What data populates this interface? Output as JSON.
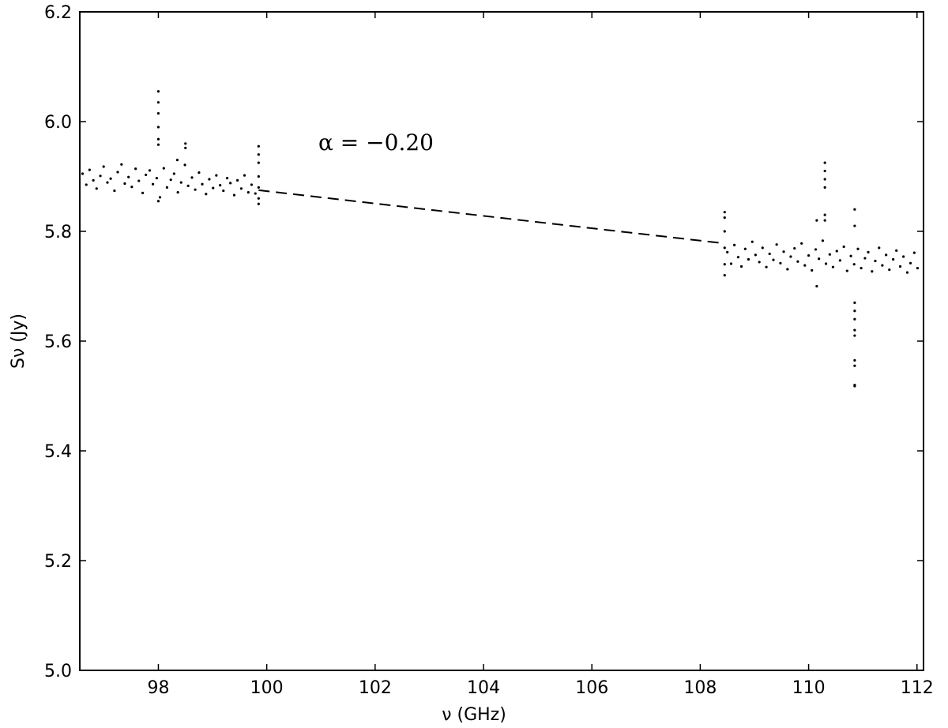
{
  "chart_data": {
    "type": "scatter",
    "xlabel": "ν (GHz)",
    "ylabel": "Sν (Jy)",
    "annotation": "α = −0.20",
    "xlim": [
      96.55,
      112.12
    ],
    "ylim": [
      5.0,
      6.2
    ],
    "xticks": [
      98,
      100,
      102,
      104,
      106,
      108,
      110,
      112
    ],
    "yticks": [
      {
        "value": 5.0,
        "label": "5.0"
      },
      {
        "value": 5.2,
        "label": "5.2"
      },
      {
        "value": 5.4,
        "label": "5.4"
      },
      {
        "value": 5.6,
        "label": "5.6"
      },
      {
        "value": 5.8,
        "label": "5.8"
      },
      {
        "value": 6.0,
        "label": "6.0"
      },
      {
        "value": 6.2,
        "label": "6.2"
      }
    ],
    "series": [
      {
        "color": "#000000",
        "style": "points",
        "x": [
          96.6,
          96.67,
          96.73,
          96.8,
          96.86,
          96.93,
          96.99,
          97.06,
          97.12,
          97.19,
          97.25,
          97.32,
          97.38,
          97.45,
          97.51,
          97.58,
          97.64,
          97.71,
          97.77,
          97.84,
          97.9,
          97.97,
          98.03,
          98.1,
          98.16,
          98.23,
          98.29,
          98.36,
          98.42,
          98.49,
          98.55,
          98.62,
          98.68,
          98.75,
          98.81,
          98.88,
          98.94,
          99.01,
          99.07,
          99.14,
          99.2,
          99.27,
          99.33,
          99.4,
          99.46,
          99.53,
          99.59,
          99.66,
          99.72,
          99.79,
          98.0,
          98.0,
          98.0,
          98.0,
          98.0,
          98.0,
          98.0,
          98.5,
          98.5,
          98.35,
          99.85,
          99.85,
          99.85,
          99.85,
          99.85,
          99.85,
          99.85,
          108.5,
          108.57,
          108.63,
          108.7,
          108.76,
          108.83,
          108.89,
          108.96,
          109.02,
          109.09,
          109.15,
          109.22,
          109.28,
          109.35,
          109.41,
          109.48,
          109.54,
          109.61,
          109.67,
          109.74,
          109.8,
          109.87,
          109.93,
          110.0,
          110.06,
          110.13,
          110.19,
          110.26,
          110.32,
          110.39,
          110.45,
          110.52,
          110.58,
          110.65,
          110.71,
          110.78,
          110.84,
          110.91,
          110.97,
          111.04,
          111.1,
          111.17,
          111.23,
          111.3,
          111.36,
          111.43,
          111.49,
          111.56,
          111.62,
          111.69,
          111.75,
          111.82,
          111.88,
          111.95,
          112.01,
          108.45,
          108.45,
          108.45,
          108.45,
          108.45,
          108.45,
          110.3,
          110.3,
          110.3,
          110.3,
          110.3,
          110.3,
          110.15,
          110.15,
          110.85,
          110.85,
          110.85,
          110.85,
          110.85,
          110.85,
          110.85,
          110.85,
          110.85,
          110.85,
          110.85
        ],
        "values": [
          5.905,
          5.885,
          5.912,
          5.893,
          5.878,
          5.901,
          5.918,
          5.889,
          5.896,
          5.874,
          5.908,
          5.922,
          5.887,
          5.899,
          5.881,
          5.914,
          5.892,
          5.87,
          5.903,
          5.911,
          5.886,
          5.897,
          5.862,
          5.915,
          5.88,
          5.894,
          5.905,
          5.871,
          5.889,
          5.921,
          5.883,
          5.898,
          5.876,
          5.907,
          5.886,
          5.868,
          5.895,
          5.879,
          5.902,
          5.884,
          5.874,
          5.897,
          5.888,
          5.866,
          5.893,
          5.878,
          5.902,
          5.871,
          5.885,
          5.869,
          6.055,
          6.035,
          6.015,
          5.99,
          5.968,
          5.958,
          5.855,
          5.96,
          5.952,
          5.93,
          5.955,
          5.94,
          5.925,
          5.9,
          5.88,
          5.86,
          5.85,
          5.762,
          5.741,
          5.775,
          5.753,
          5.736,
          5.768,
          5.749,
          5.781,
          5.757,
          5.744,
          5.77,
          5.735,
          5.759,
          5.748,
          5.776,
          5.742,
          5.763,
          5.731,
          5.754,
          5.769,
          5.745,
          5.778,
          5.738,
          5.756,
          5.729,
          5.767,
          5.75,
          5.783,
          5.741,
          5.758,
          5.735,
          5.764,
          5.747,
          5.772,
          5.728,
          5.755,
          5.74,
          5.768,
          5.733,
          5.751,
          5.762,
          5.727,
          5.746,
          5.77,
          5.738,
          5.757,
          5.73,
          5.749,
          5.765,
          5.736,
          5.754,
          5.725,
          5.742,
          5.761,
          5.733,
          5.835,
          5.825,
          5.8,
          5.77,
          5.74,
          5.72,
          5.925,
          5.91,
          5.895,
          5.88,
          5.83,
          5.82,
          5.82,
          5.7,
          5.84,
          5.81,
          5.67,
          5.655,
          5.64,
          5.62,
          5.61,
          5.565,
          5.555,
          5.52,
          5.518
        ]
      },
      {
        "color": "#000000",
        "style": "dashed",
        "x": [
          99.85,
          108.45
        ],
        "values": [
          5.875,
          5.778
        ]
      }
    ]
  }
}
